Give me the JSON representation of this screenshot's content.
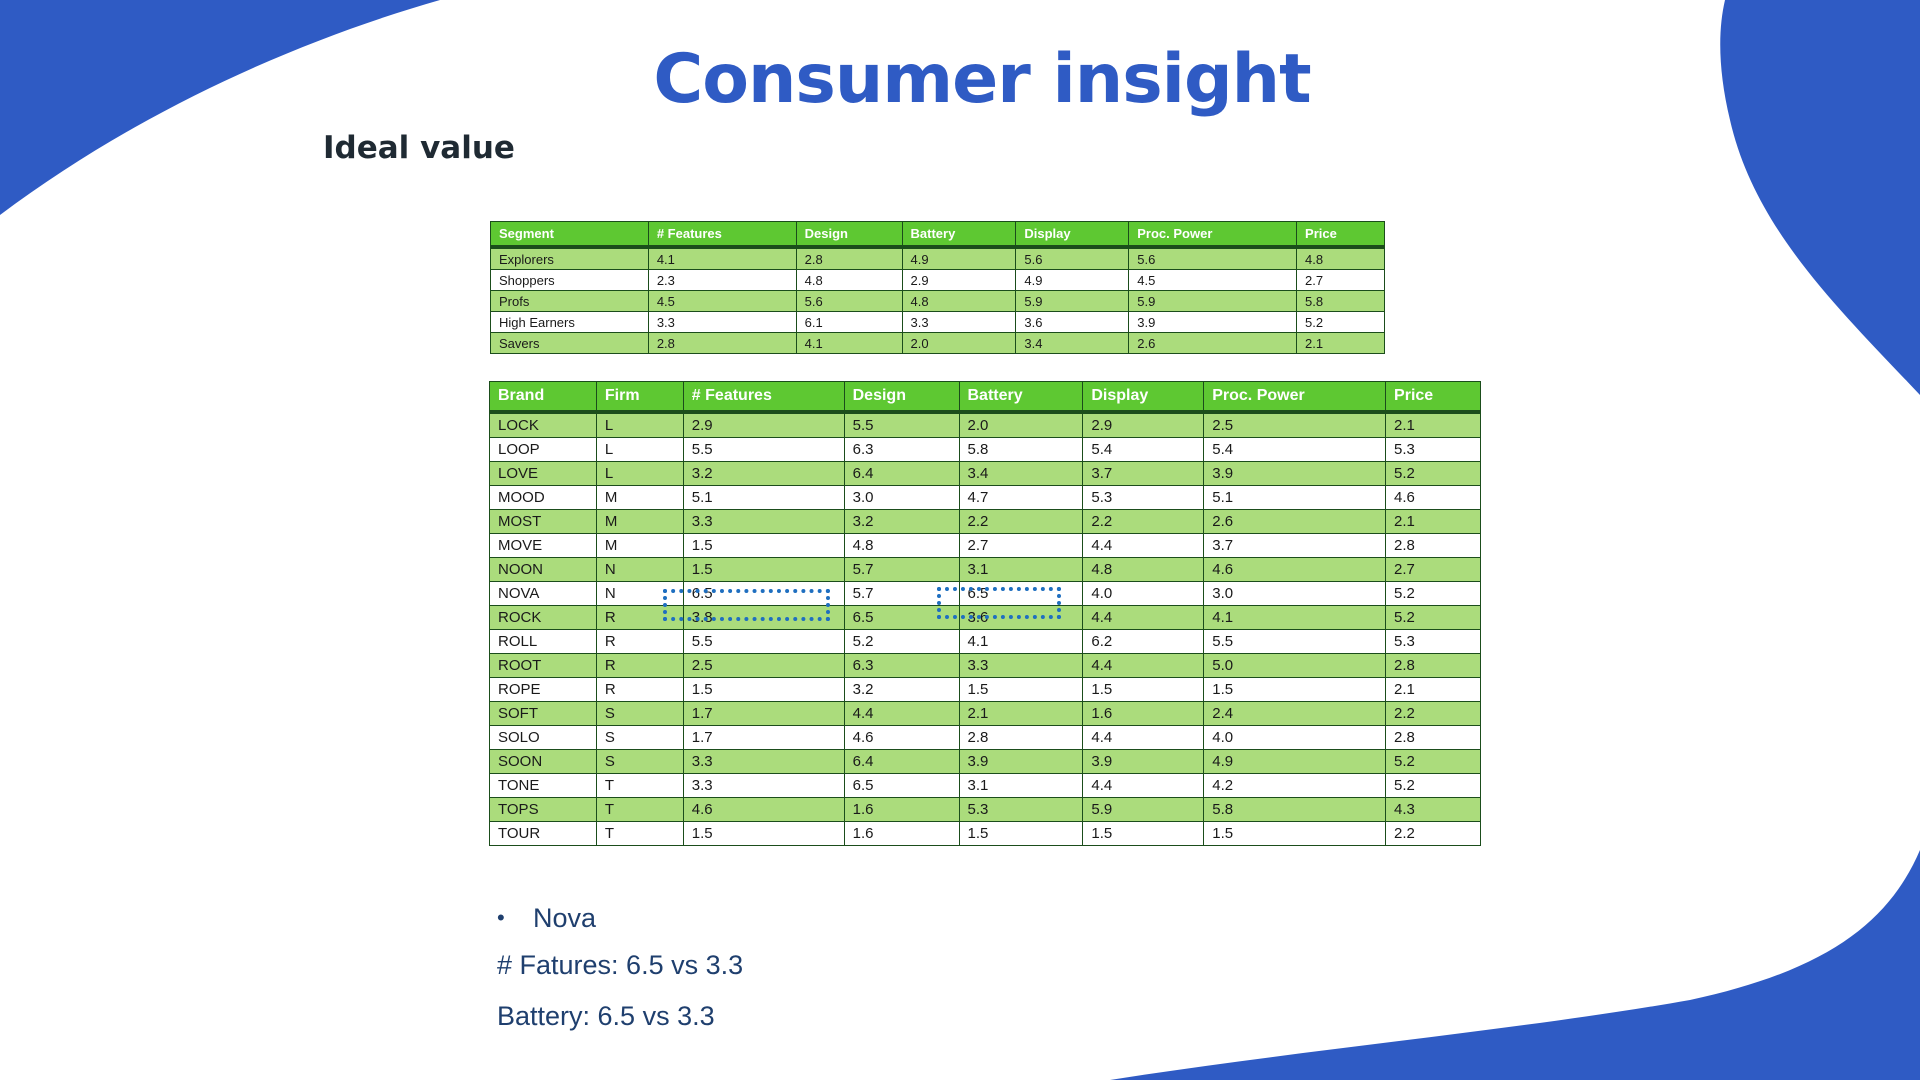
{
  "slide": {
    "title": "Consumer insight",
    "subtitle": "Ideal value",
    "accent_color": "#2f5bc4"
  },
  "segment_table": {
    "headers": [
      "Segment",
      "# Features",
      "Design",
      "Battery",
      "Display",
      "Proc. Power",
      "Price"
    ],
    "rows": [
      [
        "Explorers",
        "4.1",
        "2.8",
        "4.9",
        "5.6",
        "5.6",
        "4.8"
      ],
      [
        "Shoppers",
        "2.3",
        "4.8",
        "2.9",
        "4.9",
        "4.5",
        "2.7"
      ],
      [
        "Profs",
        "4.5",
        "5.6",
        "4.8",
        "5.9",
        "5.9",
        "5.8"
      ],
      [
        "High Earners",
        "3.3",
        "6.1",
        "3.3",
        "3.6",
        "3.9",
        "5.2"
      ],
      [
        "Savers",
        "2.8",
        "4.1",
        "2.0",
        "3.4",
        "2.6",
        "2.1"
      ]
    ]
  },
  "brand_table": {
    "headers": [
      "Brand",
      "Firm",
      "# Features",
      "Design",
      "Battery",
      "Display",
      "Proc. Power",
      "Price"
    ],
    "rows": [
      [
        "LOCK",
        "L",
        "2.9",
        "5.5",
        "2.0",
        "2.9",
        "2.5",
        "2.1"
      ],
      [
        "LOOP",
        "L",
        "5.5",
        "6.3",
        "5.8",
        "5.4",
        "5.4",
        "5.3"
      ],
      [
        "LOVE",
        "L",
        "3.2",
        "6.4",
        "3.4",
        "3.7",
        "3.9",
        "5.2"
      ],
      [
        "MOOD",
        "M",
        "5.1",
        "3.0",
        "4.7",
        "5.3",
        "5.1",
        "4.6"
      ],
      [
        "MOST",
        "M",
        "3.3",
        "3.2",
        "2.2",
        "2.2",
        "2.6",
        "2.1"
      ],
      [
        "MOVE",
        "M",
        "1.5",
        "4.8",
        "2.7",
        "4.4",
        "3.7",
        "2.8"
      ],
      [
        "NOON",
        "N",
        "1.5",
        "5.7",
        "3.1",
        "4.8",
        "4.6",
        "2.7"
      ],
      [
        "NOVA",
        "N",
        "6.5",
        "5.7",
        "6.5",
        "4.0",
        "3.0",
        "5.2"
      ],
      [
        "ROCK",
        "R",
        "3.8",
        "6.5",
        "3.6",
        "4.4",
        "4.1",
        "5.2"
      ],
      [
        "ROLL",
        "R",
        "5.5",
        "5.2",
        "4.1",
        "6.2",
        "5.5",
        "5.3"
      ],
      [
        "ROOT",
        "R",
        "2.5",
        "6.3",
        "3.3",
        "4.4",
        "5.0",
        "2.8"
      ],
      [
        "ROPE",
        "R",
        "1.5",
        "3.2",
        "1.5",
        "1.5",
        "1.5",
        "2.1"
      ],
      [
        "SOFT",
        "S",
        "1.7",
        "4.4",
        "2.1",
        "1.6",
        "2.4",
        "2.2"
      ],
      [
        "SOLO",
        "S",
        "1.7",
        "4.6",
        "2.8",
        "4.4",
        "4.0",
        "2.8"
      ],
      [
        "SOON",
        "S",
        "3.3",
        "6.4",
        "3.9",
        "3.9",
        "4.9",
        "5.2"
      ],
      [
        "TONE",
        "T",
        "3.3",
        "6.5",
        "3.1",
        "4.4",
        "4.2",
        "5.2"
      ],
      [
        "TOPS",
        "T",
        "4.6",
        "1.6",
        "5.3",
        "5.9",
        "5.8",
        "4.3"
      ],
      [
        "TOUR",
        "T",
        "1.5",
        "1.6",
        "1.5",
        "1.5",
        "1.5",
        "2.2"
      ]
    ]
  },
  "notes": {
    "bullet_symbol": "•",
    "bullet": "Nova",
    "line1": "# Fatures: 6.5 vs 3.3",
    "line2": "Battery: 6.5 vs 3.3"
  }
}
